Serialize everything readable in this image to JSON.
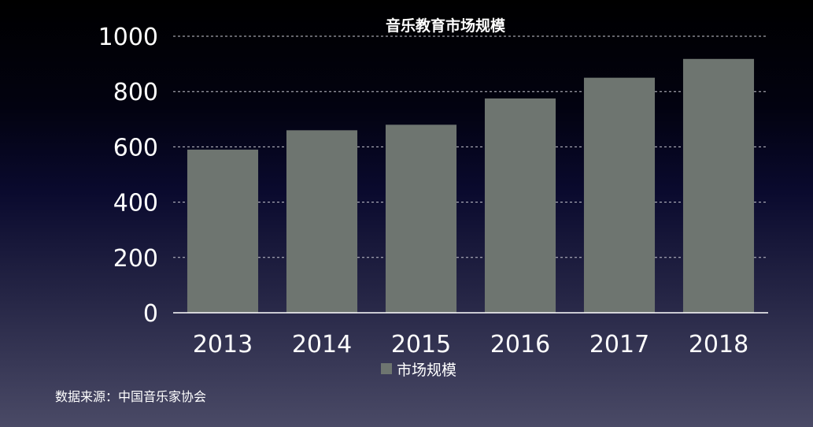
{
  "chart_data": {
    "type": "bar",
    "title": "音乐教育市场规模",
    "categories": [
      "2013",
      "2014",
      "2015",
      "2016",
      "2017",
      "2018"
    ],
    "series": [
      {
        "name": "市场规模",
        "values": [
          590,
          660,
          680,
          775,
          850,
          918
        ]
      }
    ],
    "ylim": [
      0,
      1000
    ],
    "yticks": [
      0,
      200,
      400,
      600,
      800,
      1000
    ],
    "grid": true,
    "legend": "bottom",
    "colors": {
      "bar": "#6e7570",
      "grid": "#c8c8d0",
      "axis": "#ffffff",
      "text": "#ffffff"
    }
  },
  "source_note": "数据来源：中国音乐家协会"
}
